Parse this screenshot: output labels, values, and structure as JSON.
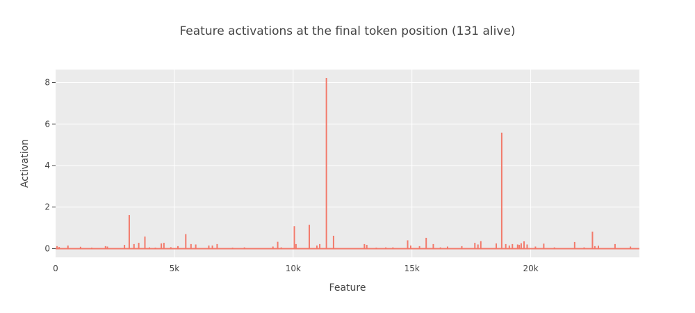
{
  "chart_data": {
    "type": "line",
    "title": "Feature activations at the final token position (131 alive)",
    "xlabel": "Feature",
    "ylabel": "Activation",
    "xlim": [
      0,
      24576
    ],
    "ylim": [
      -0.42,
      8.62
    ],
    "x_ticks": [
      0,
      5000,
      10000,
      15000,
      20000
    ],
    "x_tick_labels": [
      "0",
      "5k",
      "10k",
      "15k",
      "20k"
    ],
    "y_ticks": [
      0,
      2,
      4,
      6,
      8
    ],
    "y_tick_labels": [
      "0",
      "2",
      "4",
      "6",
      "8"
    ],
    "grid": true,
    "plot_background": "#ebebeb",
    "series": [
      {
        "color": "#f27a6b",
        "nonzero_points": [
          [
            60,
            0.12
          ],
          [
            150,
            0.08
          ],
          [
            520,
            0.15
          ],
          [
            1050,
            0.09
          ],
          [
            1520,
            0.05
          ],
          [
            2100,
            0.12
          ],
          [
            2180,
            0.1
          ],
          [
            2900,
            0.18
          ],
          [
            3100,
            1.62
          ],
          [
            3300,
            0.22
          ],
          [
            3500,
            0.28
          ],
          [
            3760,
            0.58
          ],
          [
            3950,
            0.06
          ],
          [
            4200,
            0.05
          ],
          [
            4450,
            0.25
          ],
          [
            4560,
            0.28
          ],
          [
            4850,
            0.07
          ],
          [
            5150,
            0.12
          ],
          [
            5480,
            0.7
          ],
          [
            5700,
            0.22
          ],
          [
            5900,
            0.2
          ],
          [
            6450,
            0.15
          ],
          [
            6600,
            0.15
          ],
          [
            6800,
            0.22
          ],
          [
            7450,
            0.05
          ],
          [
            7950,
            0.06
          ],
          [
            9150,
            0.1
          ],
          [
            9350,
            0.33
          ],
          [
            9500,
            0.06
          ],
          [
            10050,
            1.08
          ],
          [
            10120,
            0.22
          ],
          [
            10680,
            1.15
          ],
          [
            11000,
            0.15
          ],
          [
            11120,
            0.22
          ],
          [
            11400,
            8.22
          ],
          [
            11700,
            0.62
          ],
          [
            13000,
            0.22
          ],
          [
            13100,
            0.18
          ],
          [
            13500,
            0.05
          ],
          [
            13900,
            0.06
          ],
          [
            14200,
            0.06
          ],
          [
            14820,
            0.4
          ],
          [
            14950,
            0.15
          ],
          [
            15320,
            0.12
          ],
          [
            15600,
            0.52
          ],
          [
            15900,
            0.22
          ],
          [
            16200,
            0.06
          ],
          [
            16500,
            0.1
          ],
          [
            17100,
            0.12
          ],
          [
            17650,
            0.28
          ],
          [
            17780,
            0.2
          ],
          [
            17900,
            0.36
          ],
          [
            18550,
            0.25
          ],
          [
            18780,
            5.58
          ],
          [
            18950,
            0.22
          ],
          [
            19100,
            0.15
          ],
          [
            19230,
            0.22
          ],
          [
            19450,
            0.2
          ],
          [
            19520,
            0.18
          ],
          [
            19600,
            0.26
          ],
          [
            19720,
            0.35
          ],
          [
            19850,
            0.2
          ],
          [
            20200,
            0.1
          ],
          [
            20550,
            0.24
          ],
          [
            21000,
            0.06
          ],
          [
            21850,
            0.32
          ],
          [
            22250,
            0.06
          ],
          [
            22600,
            0.82
          ],
          [
            22700,
            0.12
          ],
          [
            22850,
            0.14
          ],
          [
            23550,
            0.22
          ],
          [
            24200,
            0.1
          ]
        ]
      }
    ]
  }
}
